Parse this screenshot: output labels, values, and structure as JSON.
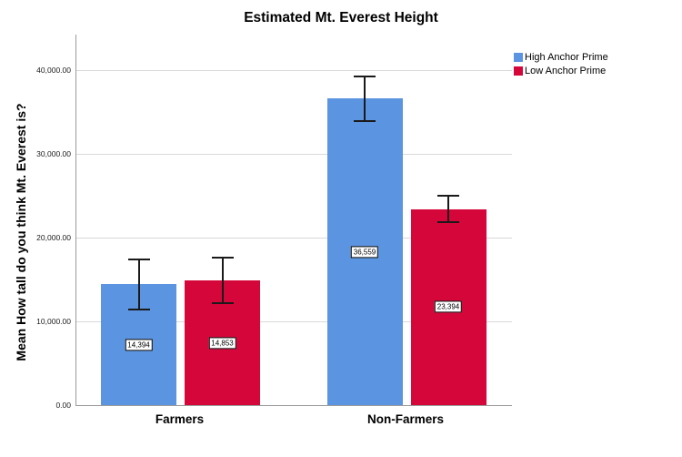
{
  "chart_data": {
    "type": "bar",
    "title": "Estimated Mt. Everest Height",
    "xlabel": "",
    "ylabel": "Mean How tall do you think Mt. Everest is?",
    "categories": [
      "Farmers",
      "Non-Farmers"
    ],
    "series": [
      {
        "name": "High Anchor Prime",
        "color": "#5b94e0",
        "values": [
          14394,
          36559
        ],
        "value_labels": [
          "14,394",
          "36,559"
        ],
        "error_low": [
          11450,
          33900
        ],
        "error_high": [
          17350,
          39200
        ]
      },
      {
        "name": "Low Anchor Prime",
        "color": "#d5063a",
        "values": [
          14853,
          23394
        ],
        "value_labels": [
          "14,853",
          "23,394"
        ],
        "error_low": [
          12150,
          21850
        ],
        "error_high": [
          17550,
          24950
        ]
      }
    ],
    "y_axis": {
      "min": 0,
      "max": 40000,
      "tick_interval": 10000,
      "tick_labels": [
        "0.00",
        "10,000.00",
        "20,000.00",
        "30,000.00",
        "40,000.00"
      ]
    },
    "grid": true,
    "legend_position": "top-right",
    "colors": {
      "axis_line": "#9b9b9b",
      "gridline": "#d9d9d9",
      "error_bar": "#1a1a1a",
      "background": "#ffffff"
    }
  }
}
